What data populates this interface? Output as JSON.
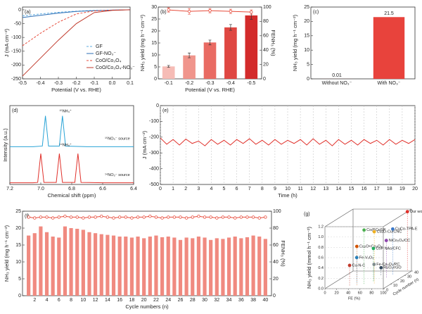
{
  "chart_data": [
    {
      "type": "line",
      "label": "(a)",
      "xlabel": "Potential (V vs. RHE)",
      "ylabel": "J (mA cm⁻²)",
      "x": [
        -0.5,
        -0.4,
        -0.3,
        -0.2,
        -0.1,
        0,
        0.1
      ],
      "series": [
        {
          "name": "GF",
          "color": "#5dade2",
          "dash": true,
          "values": [
            -22,
            -15,
            -9,
            -5,
            -2,
            -1,
            0
          ]
        },
        {
          "name": "GF-NO₃⁻",
          "color": "#2e6fb5",
          "values": [
            -28,
            -20,
            -12,
            -6,
            -3,
            -1,
            0
          ]
        },
        {
          "name": "CoO/Co₃O₄",
          "color": "#e74c3c",
          "dash": true,
          "values": [
            -130,
            -85,
            -45,
            -15,
            -4,
            -1,
            0
          ]
        },
        {
          "name": "CoO/Co₃O₄-NO₃⁻",
          "color": "#c0392b",
          "values": [
            -240,
            -175,
            -110,
            -50,
            -10,
            -2,
            0
          ]
        }
      ],
      "xlim": [
        -0.5,
        0.1
      ],
      "xticks": [
        -0.5,
        -0.4,
        -0.3,
        -0.2,
        -0.1,
        {
          "value": 0,
          "label": "0.0"
        },
        0.1
      ],
      "ylim": [
        -250,
        10
      ],
      "yticks": [
        0,
        -50,
        -100,
        -150,
        -200,
        -250
      ],
      "legend": "lower right"
    },
    {
      "type": "bar",
      "label": "(b)",
      "xlabel": "Potential (V vs. RHE)",
      "ylabel": "NH₃ yield (mg h⁻¹ cm⁻²)",
      "y2label": "FENH₃ (%)",
      "categories": [
        "-0.1",
        "-0.2",
        "-0.3",
        "-0.4",
        "-0.5"
      ],
      "series": [
        {
          "colors": [
            "#f6bcb6",
            "#f0958c",
            "#e96b63",
            "#df4742",
            "#d32b2b"
          ],
          "values": [
            5.2,
            9.8,
            15.2,
            21.5,
            26.5
          ],
          "errors": [
            0.4,
            1.0,
            1.0,
            1.2,
            1.6
          ]
        },
        {
          "type": "line",
          "axis": "y2",
          "color": "#e74c3c",
          "values": [
            96,
            94,
            95,
            94,
            93
          ],
          "errors": [
            3,
            4,
            3,
            3,
            3
          ]
        }
      ],
      "ylim": [
        0,
        30
      ],
      "yticks": [
        0,
        5,
        10,
        15,
        20,
        25,
        30
      ],
      "y2lim": [
        0,
        100
      ],
      "y2ticks": [
        0,
        20,
        40,
        60,
        80,
        100
      ]
    },
    {
      "type": "bar",
      "label": "(c)",
      "ylabel": "NH₃ yield (mg h⁻¹ cm⁻²)",
      "categories": [
        "Without NO₃⁻",
        "With NO₃⁻"
      ],
      "values": [
        0.01,
        21.5
      ],
      "color": "#e8433c",
      "show_values": true,
      "ylim": [
        0,
        25
      ],
      "yticks": [
        0,
        5,
        10,
        15,
        20,
        25
      ]
    },
    {
      "type": "line",
      "label": "(d)",
      "xlabel": "Chemical shift (ppm)",
      "ylabel": "Intensity (a.u.)",
      "series": [
        {
          "color": "#29a3d6",
          "x": [
            7.2,
            7.05,
            6.99,
            6.97,
            6.95,
            6.88,
            6.86,
            6.84,
            6.7,
            6.4
          ],
          "values": [
            1.1,
            1.1,
            1.12,
            2.0,
            1.12,
            1.12,
            2.0,
            1.12,
            1.1,
            1.1
          ]
        },
        {
          "color": "#e0302a",
          "x": [
            7.2,
            7.05,
            7.02,
            7.0,
            6.98,
            6.9,
            6.88,
            6.86,
            6.78,
            6.76,
            6.74,
            6.6,
            6.4
          ],
          "values": [
            0.05,
            0.05,
            0.06,
            0.9,
            0.06,
            0.06,
            0.9,
            0.06,
            0.06,
            0.9,
            0.06,
            0.05,
            0.05
          ]
        }
      ],
      "annotations": [
        "¹⁵NH₄⁺",
        "¹⁵NO₃⁻ source",
        "¹⁴NH₄⁺",
        "¹⁴NO₃⁻ source"
      ],
      "xlim": [
        7.2,
        6.4
      ],
      "xticks": [
        7.2,
        {
          "value": 7,
          "label": "7.0"
        },
        6.8,
        6.6,
        6.4
      ],
      "ylim": [
        0,
        2.3
      ]
    },
    {
      "type": "line",
      "label": "(e)",
      "xlabel": "Time (h)",
      "ylabel": "J (mA cm⁻²)",
      "grid": true,
      "x": [
        0,
        0.5,
        1,
        1.5,
        2,
        2.5,
        3,
        3.5,
        4,
        4.5,
        5,
        5.5,
        6,
        6.5,
        7,
        7.5,
        8,
        8.5,
        9,
        9.5,
        10,
        10.5,
        11,
        11.5,
        12,
        12.5,
        13,
        13.5,
        14,
        14.5,
        15,
        15.5,
        16,
        16.5,
        17,
        17.5,
        18,
        18.5,
        19,
        19.5,
        20
      ],
      "series": [
        {
          "color": "#e0302a",
          "values": [
            -205,
            -245,
            -215,
            -250,
            -212,
            -240,
            -225,
            -255,
            -215,
            -245,
            -220,
            -250,
            -215,
            -240,
            -210,
            -245,
            -220,
            -250,
            -215,
            -245,
            -220,
            -240,
            -215,
            -250,
            -210,
            -245,
            -220,
            -255,
            -215,
            -245,
            -220,
            -250,
            -215,
            -240,
            -220,
            -250,
            -215,
            -245,
            -220,
            -240,
            -215
          ]
        }
      ],
      "xlim": [
        0,
        20
      ],
      "xticks": [
        0,
        1,
        2,
        3,
        4,
        5,
        6,
        7,
        8,
        9,
        10,
        11,
        12,
        13,
        14,
        15,
        16,
        17,
        18,
        19,
        20
      ],
      "ylim": [
        -500,
        0
      ],
      "yticks": [
        0,
        -100,
        -200,
        -300,
        -400,
        -500
      ]
    },
    {
      "type": "bar",
      "label": "(f)",
      "xlabel": "Cycle numbers (n)",
      "ylabel": "NH₃ yield (mg h⁻¹ cm⁻²)",
      "y2label": "FENH₃ (%)",
      "x": [
        1,
        2,
        3,
        4,
        5,
        6,
        7,
        8,
        9,
        10,
        11,
        12,
        13,
        14,
        15,
        16,
        17,
        18,
        19,
        20,
        21,
        22,
        23,
        24,
        25,
        26,
        27,
        28,
        29,
        30,
        31,
        32,
        33,
        34,
        35,
        36,
        37,
        38,
        39,
        40
      ],
      "series": [
        {
          "color": "#f08a80",
          "values": [
            17.8,
            18.5,
            20.5,
            18.8,
            17.5,
            17.2,
            20.5,
            20,
            19.8,
            19.5,
            18.8,
            18.5,
            18.2,
            18,
            17.8,
            17.5,
            17.5,
            17.2,
            17.5,
            17,
            17.5,
            17.8,
            17.3,
            17.5,
            17.2,
            16.5,
            17.2,
            17,
            17.5,
            17.2,
            16.5,
            17,
            16.8,
            17.2,
            17.5,
            17,
            17.3,
            17.8,
            17.5,
            16.8
          ]
        },
        {
          "type": "line",
          "axis": "y2",
          "color": "#e74c3c",
          "values": [
            93,
            92,
            93,
            93,
            92,
            93,
            94,
            93,
            93,
            92,
            93,
            93,
            94,
            93,
            92,
            93,
            93,
            92,
            93,
            93,
            94,
            93,
            92,
            93,
            93,
            93,
            92,
            93,
            94,
            93,
            93,
            92,
            93,
            93,
            92,
            93,
            93,
            93,
            92,
            93
          ]
        }
      ],
      "xlim": [
        0,
        41
      ],
      "xticks": [
        2,
        4,
        6,
        8,
        10,
        12,
        14,
        16,
        18,
        20,
        22,
        24,
        26,
        28,
        30,
        32,
        34,
        36,
        38,
        40
      ],
      "ylim": [
        0,
        25
      ],
      "yticks": [
        0,
        5,
        10,
        15,
        20,
        25
      ],
      "y2lim": [
        0,
        100
      ],
      "y2ticks": [
        0,
        20,
        40,
        60,
        80,
        100
      ]
    },
    {
      "type": "scatter3d",
      "label": "(g)",
      "xlabel": "FE (%)",
      "ylabel": "NH₃ yield (mmol h⁻¹ cm⁻²)",
      "zlabel": "Cycle number (n)",
      "points": [
        {
          "label": "Our work",
          "color": "#e0302a",
          "x": 93,
          "y": 1.15,
          "z": 40
        },
        {
          "label": "Co@CoSP",
          "color": "#4caf50",
          "x": 55,
          "y": 1.05,
          "z": 10
        },
        {
          "label": "Cu₂O-Cu/CNC",
          "color": "#f0b020",
          "x": 70,
          "y": 1.0,
          "z": 12
        },
        {
          "label": "CuCo-TPA-E",
          "color": "#3a78c8",
          "x": 80,
          "y": 0.9,
          "z": 30
        },
        {
          "label": "Cu₂O+Co₃O₄",
          "color": "#d35400",
          "x": 45,
          "y": 0.75,
          "z": 8
        },
        {
          "label": "NiCo₂O₄/CC",
          "color": "#8e44ad",
          "x": 75,
          "y": 0.72,
          "z": 25
        },
        {
          "label": "CoP NAs/CFC",
          "color": "#27ae60",
          "x": 65,
          "y": 0.65,
          "z": 15
        },
        {
          "label": "Fe-V₂O₃",
          "color": "#2980b9",
          "x": 40,
          "y": 0.5,
          "z": 12
        },
        {
          "label": "Cu-N-C",
          "color": "#c0392b",
          "x": 35,
          "y": 0.4,
          "z": 6
        },
        {
          "label": "Fe-Co₂O₃/PC",
          "color": "#7f8c8d",
          "x": 60,
          "y": 0.3,
          "z": 20
        },
        {
          "label": "RuO₂/rGO",
          "color": "#34495e",
          "x": 60,
          "y": 0.15,
          "z": 30
        }
      ],
      "xlim": [
        0,
        100
      ],
      "xticks": [
        0,
        20,
        40,
        60,
        80,
        100
      ],
      "ylim": [
        0,
        1.2
      ],
      "yticks": [
        {
          "value": 0,
          "label": "0.0"
        },
        0.2,
        0.4,
        0.6,
        0.8,
        {
          "value": 1,
          "label": "1.0"
        },
        1.2
      ],
      "zlim": [
        0,
        40
      ],
      "zticks": [
        0,
        10,
        20,
        30,
        40
      ]
    }
  ]
}
